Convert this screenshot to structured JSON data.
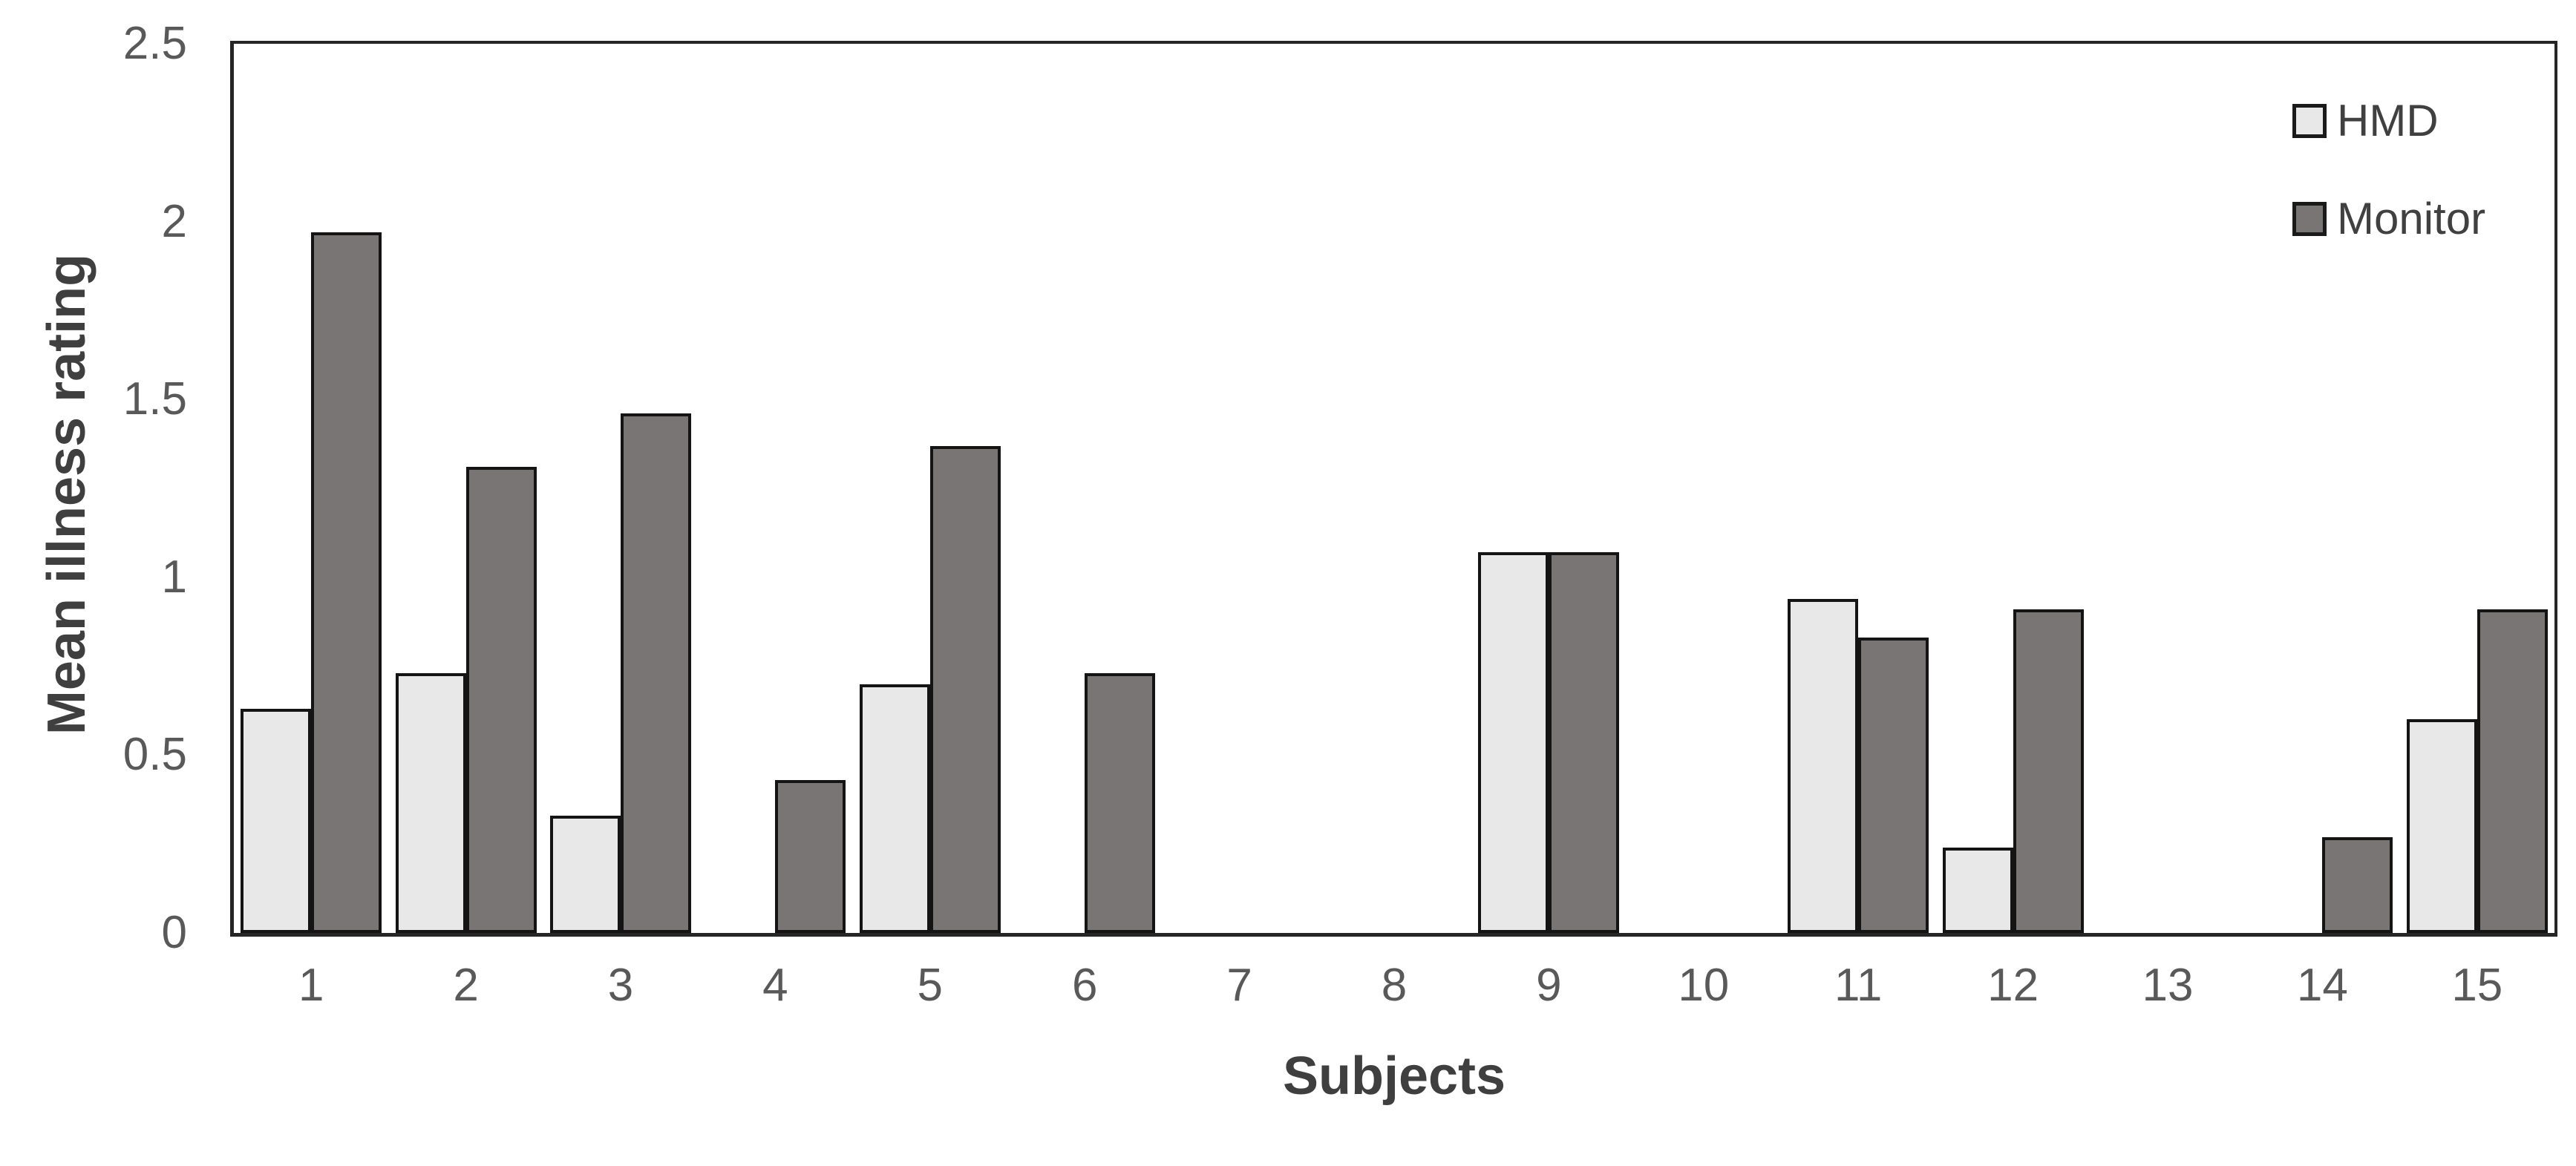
{
  "figure": {
    "y_axis_title": "Mean illness rating",
    "x_axis_title": "Subjects"
  },
  "chart_data": {
    "type": "bar",
    "title": "",
    "xlabel": "Subjects",
    "ylabel": "Mean illness rating",
    "categories": [
      "1",
      "2",
      "3",
      "4",
      "5",
      "6",
      "7",
      "8",
      "9",
      "10",
      "11",
      "12",
      "13",
      "14",
      "15"
    ],
    "series": [
      {
        "name": "HMD",
        "color": "#e9e8e8",
        "values": [
          0.63,
          0.73,
          0.33,
          0,
          0.7,
          0,
          0,
          0,
          1.07,
          0,
          0.94,
          0.24,
          0,
          0,
          0.6
        ]
      },
      {
        "name": "Monitor",
        "color": "#7a7575",
        "values": [
          1.97,
          1.31,
          1.46,
          0.43,
          1.37,
          0.73,
          0,
          0,
          1.07,
          0,
          0.83,
          0.91,
          0,
          0.27,
          0.91
        ]
      }
    ],
    "ylim": [
      0,
      2.5
    ],
    "y_ticks": [
      "0",
      "0.5",
      "1",
      "1.5",
      "2",
      "2.5"
    ],
    "grid": false,
    "legend_position": "top-right",
    "bar_border_color": "#141414",
    "axis_color": "#262626",
    "tick_label_color": "#595959",
    "axis_title_color": "#3f3f3f"
  }
}
